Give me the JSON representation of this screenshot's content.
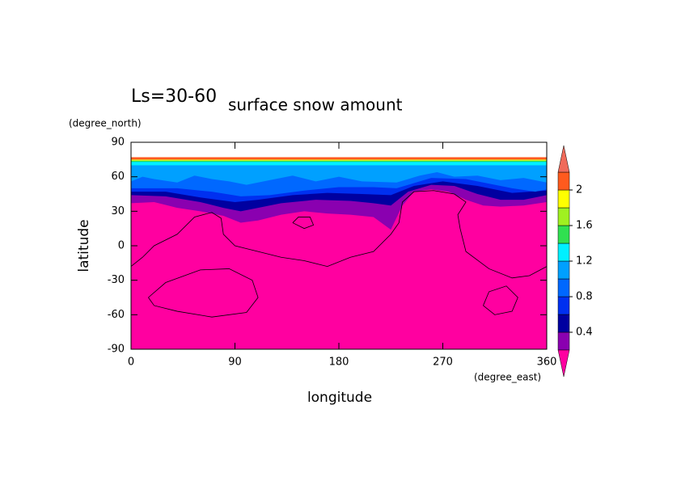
{
  "chart_data": {
    "type": "contour",
    "title": "surface snow amount",
    "subtitle": "Ls=30-60",
    "x_label": "longitude",
    "x_units": "(degree_east)",
    "y_label": "latitude",
    "y_units": "(degree_north)",
    "xlim": [
      0,
      360
    ],
    "ylim": [
      -90,
      90
    ],
    "xticks": [
      0,
      90,
      180,
      270,
      360
    ],
    "yticks": [
      -90,
      -60,
      -30,
      0,
      30,
      60,
      90
    ],
    "colorbar": {
      "levels": [
        0.2,
        0.4,
        0.6,
        0.8,
        1.0,
        1.2,
        1.4,
        1.6,
        1.8,
        2.0,
        2.2
      ],
      "colors": [
        "#ff00a0",
        "#8a00b0",
        "#0000a0",
        "#0030f0",
        "#0068ff",
        "#00a0ff",
        "#00f0ff",
        "#30e050",
        "#a0f020",
        "#ffff00",
        "#ff5a1e",
        "#f06a5a"
      ],
      "ticks": [
        0.4,
        0.8,
        1.2,
        1.6,
        2
      ]
    }
  }
}
